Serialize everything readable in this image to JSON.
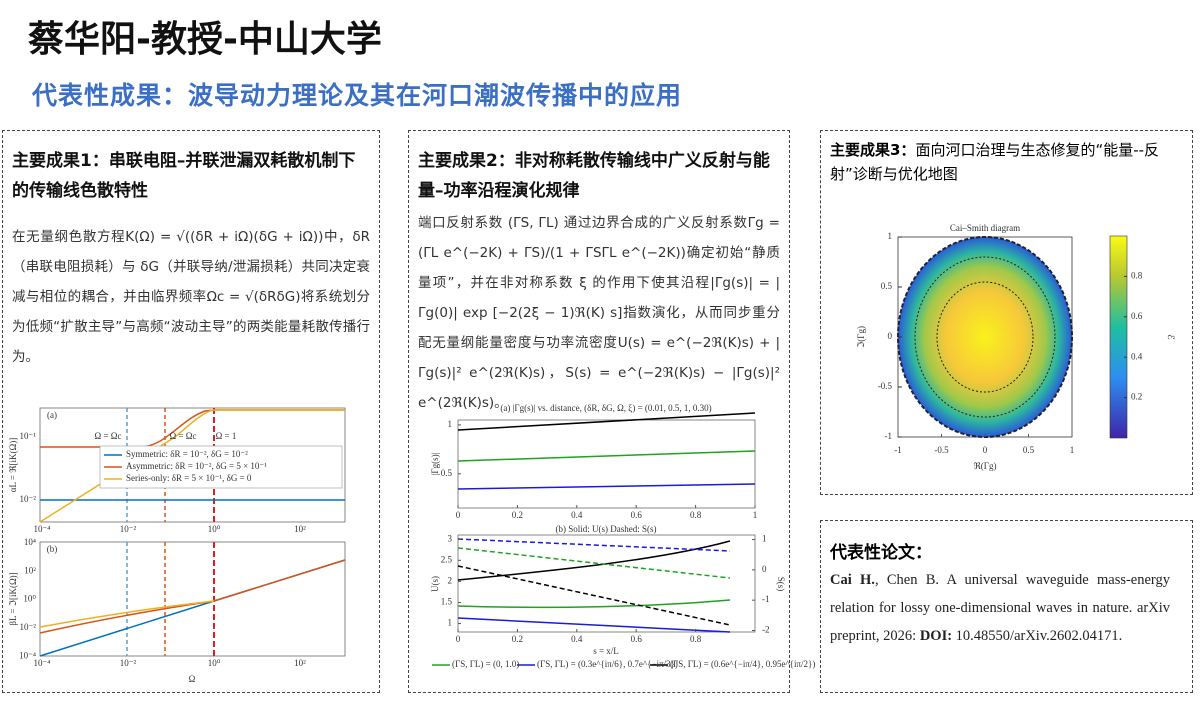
{
  "header": {
    "title": "蔡华阳-教授-中山大学",
    "subtitle": "代表性成果：波导动力理论及其在河口潮波传播中的应用"
  },
  "panel1": {
    "heading": "主要成果1：串联电阻–并联泄漏双耗散机制下的传输线色散特性",
    "text": "在无量纲色散方程K(Ω) = √((δR + iΩ)(δG + iΩ))中，δR（串联电阻损耗）与 δG（并联导纳/泄漏损耗）共同决定衰减与相位的耦合，并由临界频率Ωc = √(δRδG)将系统划分为低频“扩散主导”与高频“波动主导”的两类能量耗散传播行为。",
    "figure": {
      "a": {
        "label": "(a)",
        "ylabel": "αL = ℜ[iK(Ω)]",
        "xticks": [
          "10⁻⁴",
          "10⁻²",
          "10⁰",
          "10²"
        ],
        "yticks": [
          "10⁻¹",
          "10⁻²"
        ],
        "annotations": [
          "Ω = Ωc",
          "Ω = Ωc",
          "Ω = 1"
        ],
        "legend": [
          "Symmetric: δR = 10⁻², δG = 10⁻²",
          "Asymmetric: δR = 10⁻², δG = 5 × 10⁻¹",
          "Series-only: δR = 5 × 10⁻¹, δG = 0"
        ]
      },
      "b": {
        "label": "(b)",
        "ylabel": "βL = ℑ[iK(Ω)]",
        "xlabel": "Ω",
        "xticks": [
          "10⁻⁴",
          "10⁻²",
          "10⁰",
          "10²"
        ],
        "yticks": [
          "10⁴",
          "10²",
          "10⁰",
          "10⁻²",
          "10⁻⁴"
        ]
      }
    }
  },
  "panel2": {
    "heading": "主要成果2：非对称耗散传输线中广义反射与能量–功率沿程演化规律",
    "text": "端口反射系数 (ΓS, ΓL) 通过边界合成的广义反射系数Γg = (ΓL e^(−2K) + ΓS)/(1 + ΓSΓL e^(−2K))确定初始“静质量项”，并在非对称系数 ξ 的作用下使其沿程|Γg(s)| = |Γg(0)| exp [−2(2ξ − 1)ℜ(K) s]指数演化，从而同步重分配无量纲能量密度与功率流密度U(s) = e^(−2ℜ(K)s) + |Γg(s)|² e^(2ℜ(K)s)，S(s) = e^(−2ℜ(K)s) − |Γg(s)|² e^(2ℜ(K)s)。",
    "figure": {
      "a": {
        "title": "(a) |Γg(s)| vs. distance, (δR, δG, Ω, ξ) = (0.01, 0.5, 1, 0.30)",
        "ylabel": "|Γg(s)|",
        "xticks": [
          0,
          0.2,
          0.4,
          0.6,
          0.8,
          1
        ],
        "yticks": [
          0.5,
          1
        ]
      },
      "b": {
        "title": "(b) Solid: U(s)      Dashed: S(s)",
        "ylabel": "U(s)",
        "y2label": "S(s)",
        "xlabel": "s = x/L",
        "xticks": [
          0,
          0.2,
          0.4,
          0.6,
          0.8
        ],
        "yticks": [
          1,
          1.5,
          2,
          2.5,
          3
        ],
        "y2ticks": [
          -2,
          -1,
          0,
          1
        ]
      },
      "legend": [
        "(ΓS, ΓL) = (0, 1.0)",
        "(ΓS, ΓL) = (0.3e^{iπ/6}, 0.7e^{−iπ/3})",
        "(ΓS, ΓL) = (0.6e^{−iπ/4}, 0.95e^{iπ/2})"
      ]
    }
  },
  "panel3": {
    "heading_bold": "主要成果3：",
    "heading": "面向河口治理与生态修复的“能量--反射”诊断与优化地图",
    "figure": {
      "title": "Cai–Smith diagram",
      "xlabel": "ℜ(Γg)",
      "ylabel": "ℑ(Γg)",
      "xticks": [
        -1,
        -0.5,
        0,
        0.5,
        1
      ],
      "yticks": [
        -1,
        -0.5,
        0,
        0.5,
        1
      ],
      "colorbar_ticks": [
        0.2,
        0.4,
        0.6,
        0.8
      ],
      "colorbar_label": "ℰ"
    }
  },
  "panel4": {
    "heading": "代表性论文：",
    "authors": "Cai H.",
    "text": ", Chen B. A universal waveguide mass-energy relation for lossy one-dimensional waves in nature. arXiv preprint, 2026: ",
    "doi_label": "DOI:",
    "doi": "10.48550/arXiv.2602.04171."
  }
}
